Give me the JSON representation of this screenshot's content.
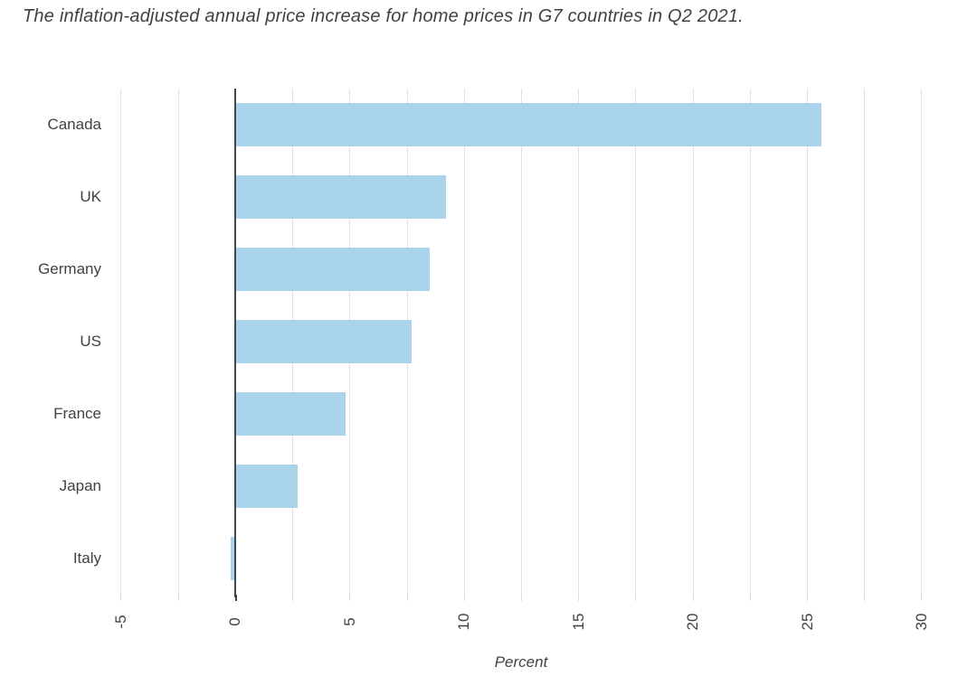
{
  "colors": {
    "bar": "#aad4ec",
    "gridline": "#e2e2e2",
    "minor_tick": "#d9d9d9",
    "axis": "#41464c",
    "text": "#3f4245"
  },
  "chart_data": {
    "type": "bar",
    "orientation": "horizontal",
    "title": "The inflation-adjusted annual price increase for home prices in G7 countries in Q2 2021.",
    "xlabel": "Percent",
    "ylabel": "",
    "categories": [
      "Canada",
      "UK",
      "Germany",
      "US",
      "France",
      "Japan",
      "Italy"
    ],
    "values": [
      25.6,
      9.2,
      8.5,
      7.7,
      4.8,
      2.7,
      -0.2
    ],
    "xlim": [
      -5,
      30
    ],
    "x_tick_labels": [
      -5,
      0,
      5,
      10,
      15,
      20,
      25,
      30
    ],
    "x_minor_step": 2.5,
    "grid": true,
    "legend": false,
    "bar_value_labels": false
  }
}
